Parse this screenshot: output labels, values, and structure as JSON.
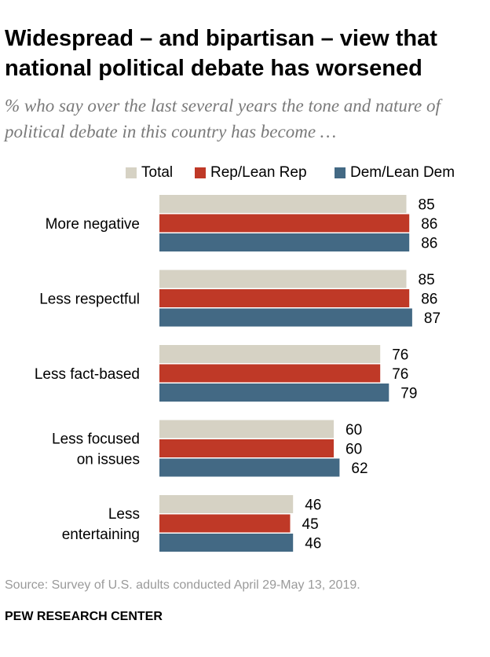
{
  "chart_data": {
    "type": "bar",
    "orientation": "horizontal",
    "title": "Widespread – and bipartisan – view that national political debate has worsened",
    "subtitle": "% who say over the last several years the tone and nature of political debate in this country has become …",
    "categories": [
      [
        "More negative"
      ],
      [
        "Less respectful"
      ],
      [
        "Less fact-based"
      ],
      [
        "Less focused",
        "on issues"
      ],
      [
        "Less",
        "entertaining"
      ]
    ],
    "series": [
      {
        "name": "Total",
        "color": "#d6d2c4",
        "values": [
          85,
          85,
          76,
          60,
          46
        ]
      },
      {
        "name": "Rep/Lean Rep",
        "color": "#bf3927",
        "values": [
          86,
          86,
          76,
          60,
          45
        ]
      },
      {
        "name": "Dem/Lean Dem",
        "color": "#436984",
        "values": [
          86,
          87,
          79,
          62,
          46
        ]
      }
    ],
    "xlim": [
      0,
      100
    ],
    "legend_position": "top-right"
  },
  "source": "Source: Survey of U.S. adults conducted April 29-May 13, 2019.",
  "footer": "PEW RESEARCH CENTER"
}
